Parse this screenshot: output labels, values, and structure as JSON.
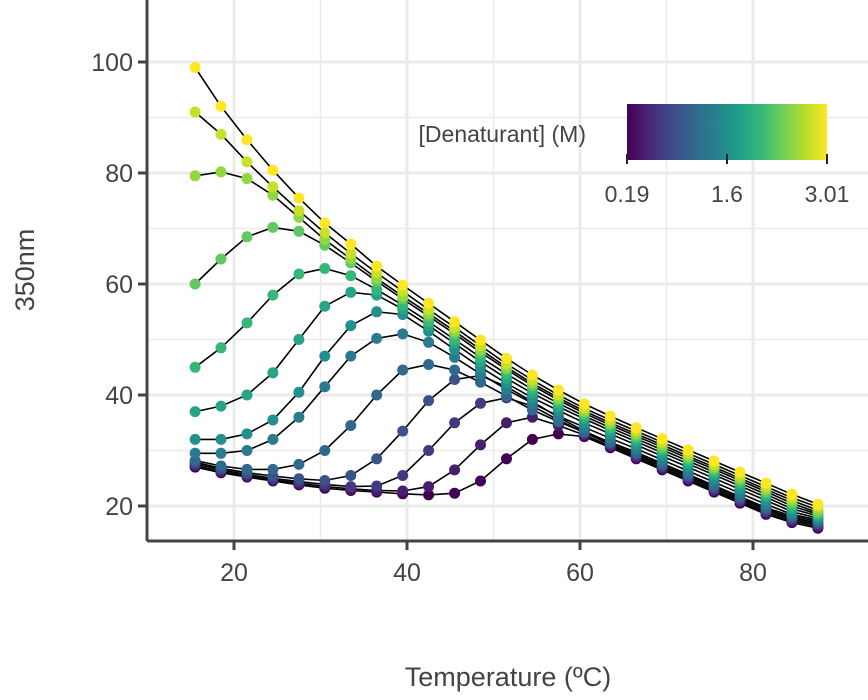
{
  "chart_data": {
    "type": "scatter",
    "xlabel": "Temperature (ºC)",
    "ylabel": "350nm",
    "xlim": [
      10,
      90
    ],
    "ylim": [
      14,
      112
    ],
    "x_ticks": [
      20,
      40,
      60,
      80
    ],
    "y_ticks": [
      20,
      40,
      60,
      80,
      100
    ],
    "grid": true,
    "legend": {
      "title": "[Denaturant] (M)",
      "placement": "top-right",
      "type": "colorbar",
      "min": 0.19,
      "max": 3.01,
      "tick_values": [
        0.19,
        1.6,
        3.01
      ],
      "tick_labels": [
        "0.19",
        "1.6",
        "3.01"
      ],
      "colormap": [
        "#440154",
        "#482878",
        "#3e4a89",
        "#31688e",
        "#26828e",
        "#1f9e89",
        "#35b779",
        "#6ece58",
        "#b5de2b",
        "#fde725"
      ]
    },
    "line_color": "#000000",
    "series": [
      {
        "denaturant": 0.19,
        "x": [
          15.5,
          18.5,
          21.5,
          24.5,
          27.5,
          30.5,
          33.5,
          36.5,
          39.5,
          42.5,
          45.5,
          48.5,
          51.5,
          54.5,
          57.5,
          60.5,
          63.5,
          66.5,
          69.5,
          72.5,
          75.5,
          78.5,
          81.5,
          84.5,
          87.5
        ],
        "y": [
          27,
          26,
          25.2,
          24.5,
          23.8,
          23.2,
          22.8,
          22.5,
          22.2,
          22.0,
          22.3,
          24.5,
          28.5,
          32,
          33,
          32.5,
          30.5,
          28.5,
          26.5,
          24.5,
          22.5,
          20.5,
          18.5,
          17,
          16
        ]
      },
      {
        "denaturant": 0.42,
        "x": [
          15.5,
          18.5,
          21.5,
          24.5,
          27.5,
          30.5,
          33.5,
          36.5,
          39.5,
          42.5,
          45.5,
          48.5,
          51.5,
          54.5,
          57.5,
          60.5,
          63.5,
          66.5,
          69.5,
          72.5,
          75.5,
          78.5,
          81.5,
          84.5,
          87.5
        ],
        "y": [
          27.3,
          26.2,
          25.4,
          24.7,
          24.1,
          23.5,
          23.1,
          22.8,
          22.7,
          23.5,
          26.5,
          31,
          35,
          36,
          34.5,
          32.8,
          30.8,
          28.8,
          26.8,
          24.8,
          22.8,
          20.8,
          18.8,
          17.3,
          16.3
        ]
      },
      {
        "denaturant": 0.66,
        "x": [
          15.5,
          18.5,
          21.5,
          24.5,
          27.5,
          30.5,
          33.5,
          36.5,
          39.5,
          42.5,
          45.5,
          48.5,
          51.5,
          54.5,
          57.5,
          60.5,
          63.5,
          66.5,
          69.5,
          72.5,
          75.5,
          78.5,
          81.5,
          84.5,
          87.5
        ],
        "y": [
          27.6,
          26.5,
          25.7,
          25.0,
          24.4,
          23.9,
          23.5,
          23.6,
          25.5,
          30,
          35,
          38.5,
          39.5,
          38,
          35.5,
          33.2,
          31.1,
          29.1,
          27.1,
          25.1,
          23.1,
          21.1,
          19.1,
          17.6,
          16.6
        ]
      },
      {
        "denaturant": 0.89,
        "x": [
          15.5,
          18.5,
          21.5,
          24.5,
          27.5,
          30.5,
          33.5,
          36.5,
          39.5,
          42.5,
          45.5,
          48.5,
          51.5,
          54.5,
          57.5,
          60.5,
          63.5,
          66.5,
          69.5,
          72.5,
          75.5,
          78.5,
          81.5,
          84.5,
          87.5
        ],
        "y": [
          27.9,
          26.8,
          26.0,
          25.4,
          24.9,
          24.6,
          25.5,
          28.5,
          33.5,
          39,
          42.8,
          43.5,
          41.5,
          38.8,
          36.0,
          33.5,
          31.4,
          29.4,
          27.4,
          25.4,
          23.4,
          21.4,
          19.4,
          17.9,
          16.9
        ]
      },
      {
        "denaturant": 1.13,
        "x": [
          15.5,
          18.5,
          21.5,
          24.5,
          27.5,
          30.5,
          33.5,
          36.5,
          39.5,
          42.5,
          45.5,
          48.5,
          51.5,
          54.5,
          57.5,
          60.5,
          63.5,
          66.5,
          69.5,
          72.5,
          75.5,
          78.5,
          81.5,
          84.5,
          87.5
        ],
        "y": [
          28.2,
          27.2,
          26.6,
          26.6,
          27.5,
          30,
          34.5,
          40,
          44.5,
          45.5,
          44.5,
          42.3,
          39.8,
          37.3,
          35.2,
          33.3,
          31.5,
          29.7,
          27.7,
          25.7,
          23.7,
          21.7,
          19.7,
          18.2,
          17.2
        ]
      },
      {
        "denaturant": 1.37,
        "x": [
          15.5,
          18.5,
          21.5,
          24.5,
          27.5,
          30.5,
          33.5,
          36.5,
          39.5,
          42.5,
          45.5,
          48.5,
          51.5,
          54.5,
          57.5,
          60.5,
          63.5,
          66.5,
          69.5,
          72.5,
          75.5,
          78.5,
          81.5,
          84.5,
          87.5
        ],
        "y": [
          29.5,
          29.5,
          30,
          32,
          36,
          41.5,
          47,
          50.2,
          51,
          49.5,
          46.8,
          43.8,
          41.0,
          38.5,
          36.2,
          34.2,
          32.2,
          30.3,
          28.3,
          26.3,
          24.3,
          22.3,
          20.3,
          18.5,
          17.5
        ]
      },
      {
        "denaturant": 1.6,
        "x": [
          15.5,
          18.5,
          21.5,
          24.5,
          27.5,
          30.5,
          33.5,
          36.5,
          39.5,
          42.5,
          45.5,
          48.5,
          51.5,
          54.5,
          57.5,
          60.5,
          63.5,
          66.5,
          69.5,
          72.5,
          75.5,
          78.5,
          81.5,
          84.5,
          87.5
        ],
        "y": [
          32,
          32,
          33,
          35.5,
          40.5,
          47,
          52.5,
          55,
          54.5,
          51.5,
          48.2,
          45.0,
          42.1,
          39.5,
          37.2,
          35.0,
          33.0,
          31.0,
          29.0,
          27.0,
          25.0,
          23.0,
          21.0,
          19,
          17.8
        ]
      },
      {
        "denaturant": 1.84,
        "x": [
          15.5,
          18.5,
          21.5,
          24.5,
          27.5,
          30.5,
          33.5,
          36.5,
          39.5,
          42.5,
          45.5,
          48.5,
          51.5,
          54.5,
          57.5,
          60.5,
          63.5,
          66.5,
          69.5,
          72.5,
          75.5,
          78.5,
          81.5,
          84.5,
          87.5
        ],
        "y": [
          37,
          38,
          40,
          44,
          50,
          56,
          58.5,
          58,
          55.5,
          52.5,
          49.3,
          46.0,
          43.0,
          40.3,
          37.9,
          35.7,
          33.6,
          31.6,
          29.6,
          27.6,
          25.6,
          23.6,
          21.6,
          19.5,
          18.2
        ]
      },
      {
        "denaturant": 2.07,
        "x": [
          15.5,
          18.5,
          21.5,
          24.5,
          27.5,
          30.5,
          33.5,
          36.5,
          39.5,
          42.5,
          45.5,
          48.5,
          51.5,
          54.5,
          57.5,
          60.5,
          63.5,
          66.5,
          69.5,
          72.5,
          75.5,
          78.5,
          81.5,
          84.5,
          87.5
        ],
        "y": [
          45,
          48.5,
          53,
          58,
          61.8,
          62.8,
          61.5,
          59,
          56.2,
          53.2,
          50.0,
          46.8,
          43.8,
          41.0,
          38.5,
          36.2,
          34.1,
          32.1,
          30.1,
          28.1,
          26.1,
          24.1,
          22.1,
          20,
          18.5
        ]
      },
      {
        "denaturant": 2.31,
        "x": [
          15.5,
          18.5,
          21.5,
          24.5,
          27.5,
          30.5,
          33.5,
          36.5,
          39.5,
          42.5,
          45.5,
          48.5,
          51.5,
          54.5,
          57.5,
          60.5,
          63.5,
          66.5,
          69.5,
          72.5,
          75.5,
          78.5,
          81.5,
          84.5,
          87.5
        ],
        "y": [
          60,
          64.5,
          68.5,
          70.2,
          69.5,
          67,
          63.8,
          60.5,
          57.3,
          54.2,
          51.0,
          47.7,
          44.6,
          41.7,
          39.1,
          36.7,
          34.6,
          32.6,
          30.6,
          28.6,
          26.6,
          24.6,
          22.6,
          20.5,
          18.8
        ]
      },
      {
        "denaturant": 2.54,
        "x": [
          15.5,
          18.5,
          21.5,
          24.5,
          27.5,
          30.5,
          33.5,
          36.5,
          39.5,
          42.5,
          45.5,
          48.5,
          51.5,
          54.5,
          57.5,
          60.5,
          63.5,
          66.5,
          69.5,
          72.5,
          75.5,
          78.5,
          81.5,
          84.5,
          87.5
        ],
        "y": [
          79.5,
          80.2,
          79,
          76,
          72,
          68,
          64.5,
          61.0,
          57.8,
          54.7,
          51.5,
          48.2,
          45.0,
          42.1,
          39.5,
          37.1,
          35.0,
          33.0,
          31.0,
          29.0,
          27.0,
          25.0,
          23.0,
          21,
          19.2
        ]
      },
      {
        "denaturant": 2.78,
        "x": [
          15.5,
          18.5,
          21.5,
          24.5,
          27.5,
          30.5,
          33.5,
          36.5,
          39.5,
          42.5,
          45.5,
          48.5,
          51.5,
          54.5,
          57.5,
          60.5,
          63.5,
          66.5,
          69.5,
          72.5,
          75.5,
          78.5,
          81.5,
          84.5,
          87.5
        ],
        "y": [
          91,
          87,
          82,
          77.5,
          73.2,
          69.2,
          65.5,
          62.0,
          58.7,
          55.4,
          52.2,
          48.9,
          45.6,
          42.7,
          40.0,
          37.6,
          35.5,
          33.5,
          31.5,
          29.5,
          27.5,
          25.5,
          23.5,
          21.5,
          19.8
        ]
      },
      {
        "denaturant": 3.01,
        "x": [
          15.5,
          18.5,
          21.5,
          24.5,
          27.5,
          30.5,
          33.5,
          36.5,
          39.5,
          42.5,
          45.5,
          48.5,
          51.5,
          54.5,
          57.5,
          60.5,
          63.5,
          66.5,
          69.5,
          72.5,
          75.5,
          78.5,
          81.5,
          84.5,
          87.5
        ],
        "y": [
          99,
          92,
          86,
          80.5,
          75.5,
          71,
          67.2,
          63.2,
          59.8,
          56.5,
          53.2,
          49.9,
          46.6,
          43.6,
          40.9,
          38.4,
          36.2,
          34.1,
          32.1,
          30.1,
          28.1,
          26.1,
          24.1,
          22.1,
          20.3
        ]
      }
    ]
  }
}
